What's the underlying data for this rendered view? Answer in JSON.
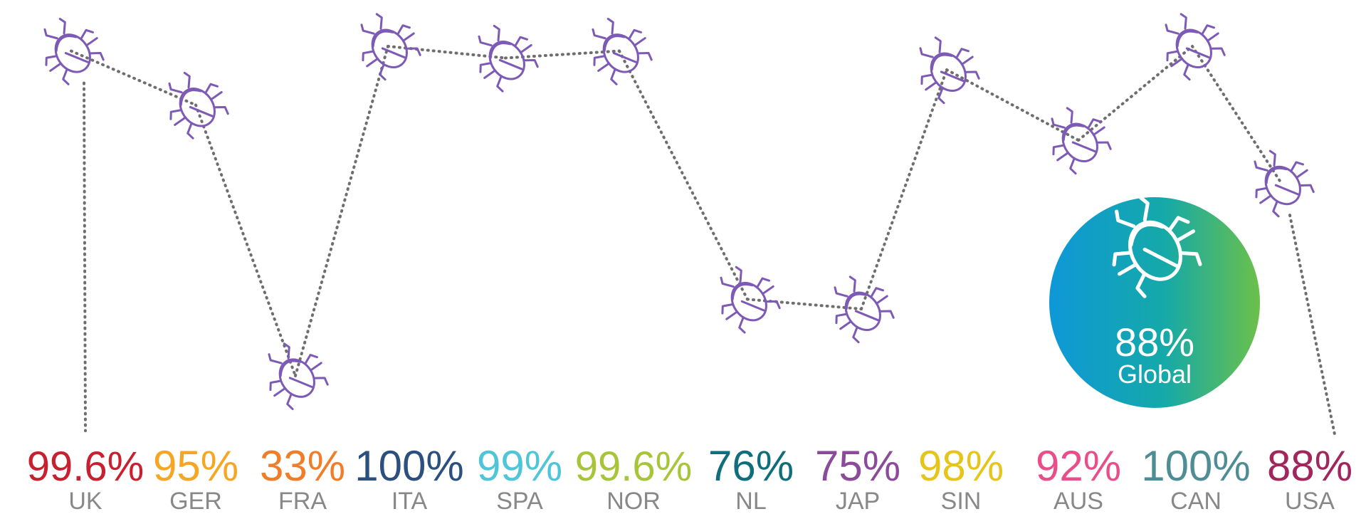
{
  "chart_data": {
    "type": "line",
    "categories": [
      "UK",
      "GER",
      "FRA",
      "ITA",
      "SPA",
      "NOR",
      "NL",
      "JAP",
      "SIN",
      "AUS",
      "CAN",
      "USA"
    ],
    "value_labels": [
      "99.6%",
      "95%",
      "33%",
      "100%",
      "99%",
      "99.6%",
      "76%",
      "75%",
      "98%",
      "92%",
      "100%",
      "88%"
    ],
    "values": [
      99.6,
      95,
      33,
      100,
      99,
      99.6,
      76,
      75,
      98,
      92,
      100,
      88
    ],
    "colors": [
      "#c8202f",
      "#f5a623",
      "#f07d28",
      "#2b4f7e",
      "#4ec6d8",
      "#a8c53a",
      "#0f6d7c",
      "#8b4b9a",
      "#e6c51b",
      "#e84e89",
      "#4f8d95",
      "#a2255b"
    ],
    "marker": "bug-icon",
    "marker_color": "#7d5ab5",
    "line_style": "dotted",
    "line_color": "#6e6e6e",
    "label_color": "#888888",
    "grid": false,
    "global": {
      "value_label": "88%",
      "label": "Global",
      "gradient": [
        "#0e98d8",
        "#15a9a8",
        "#6cc04a"
      ]
    }
  }
}
